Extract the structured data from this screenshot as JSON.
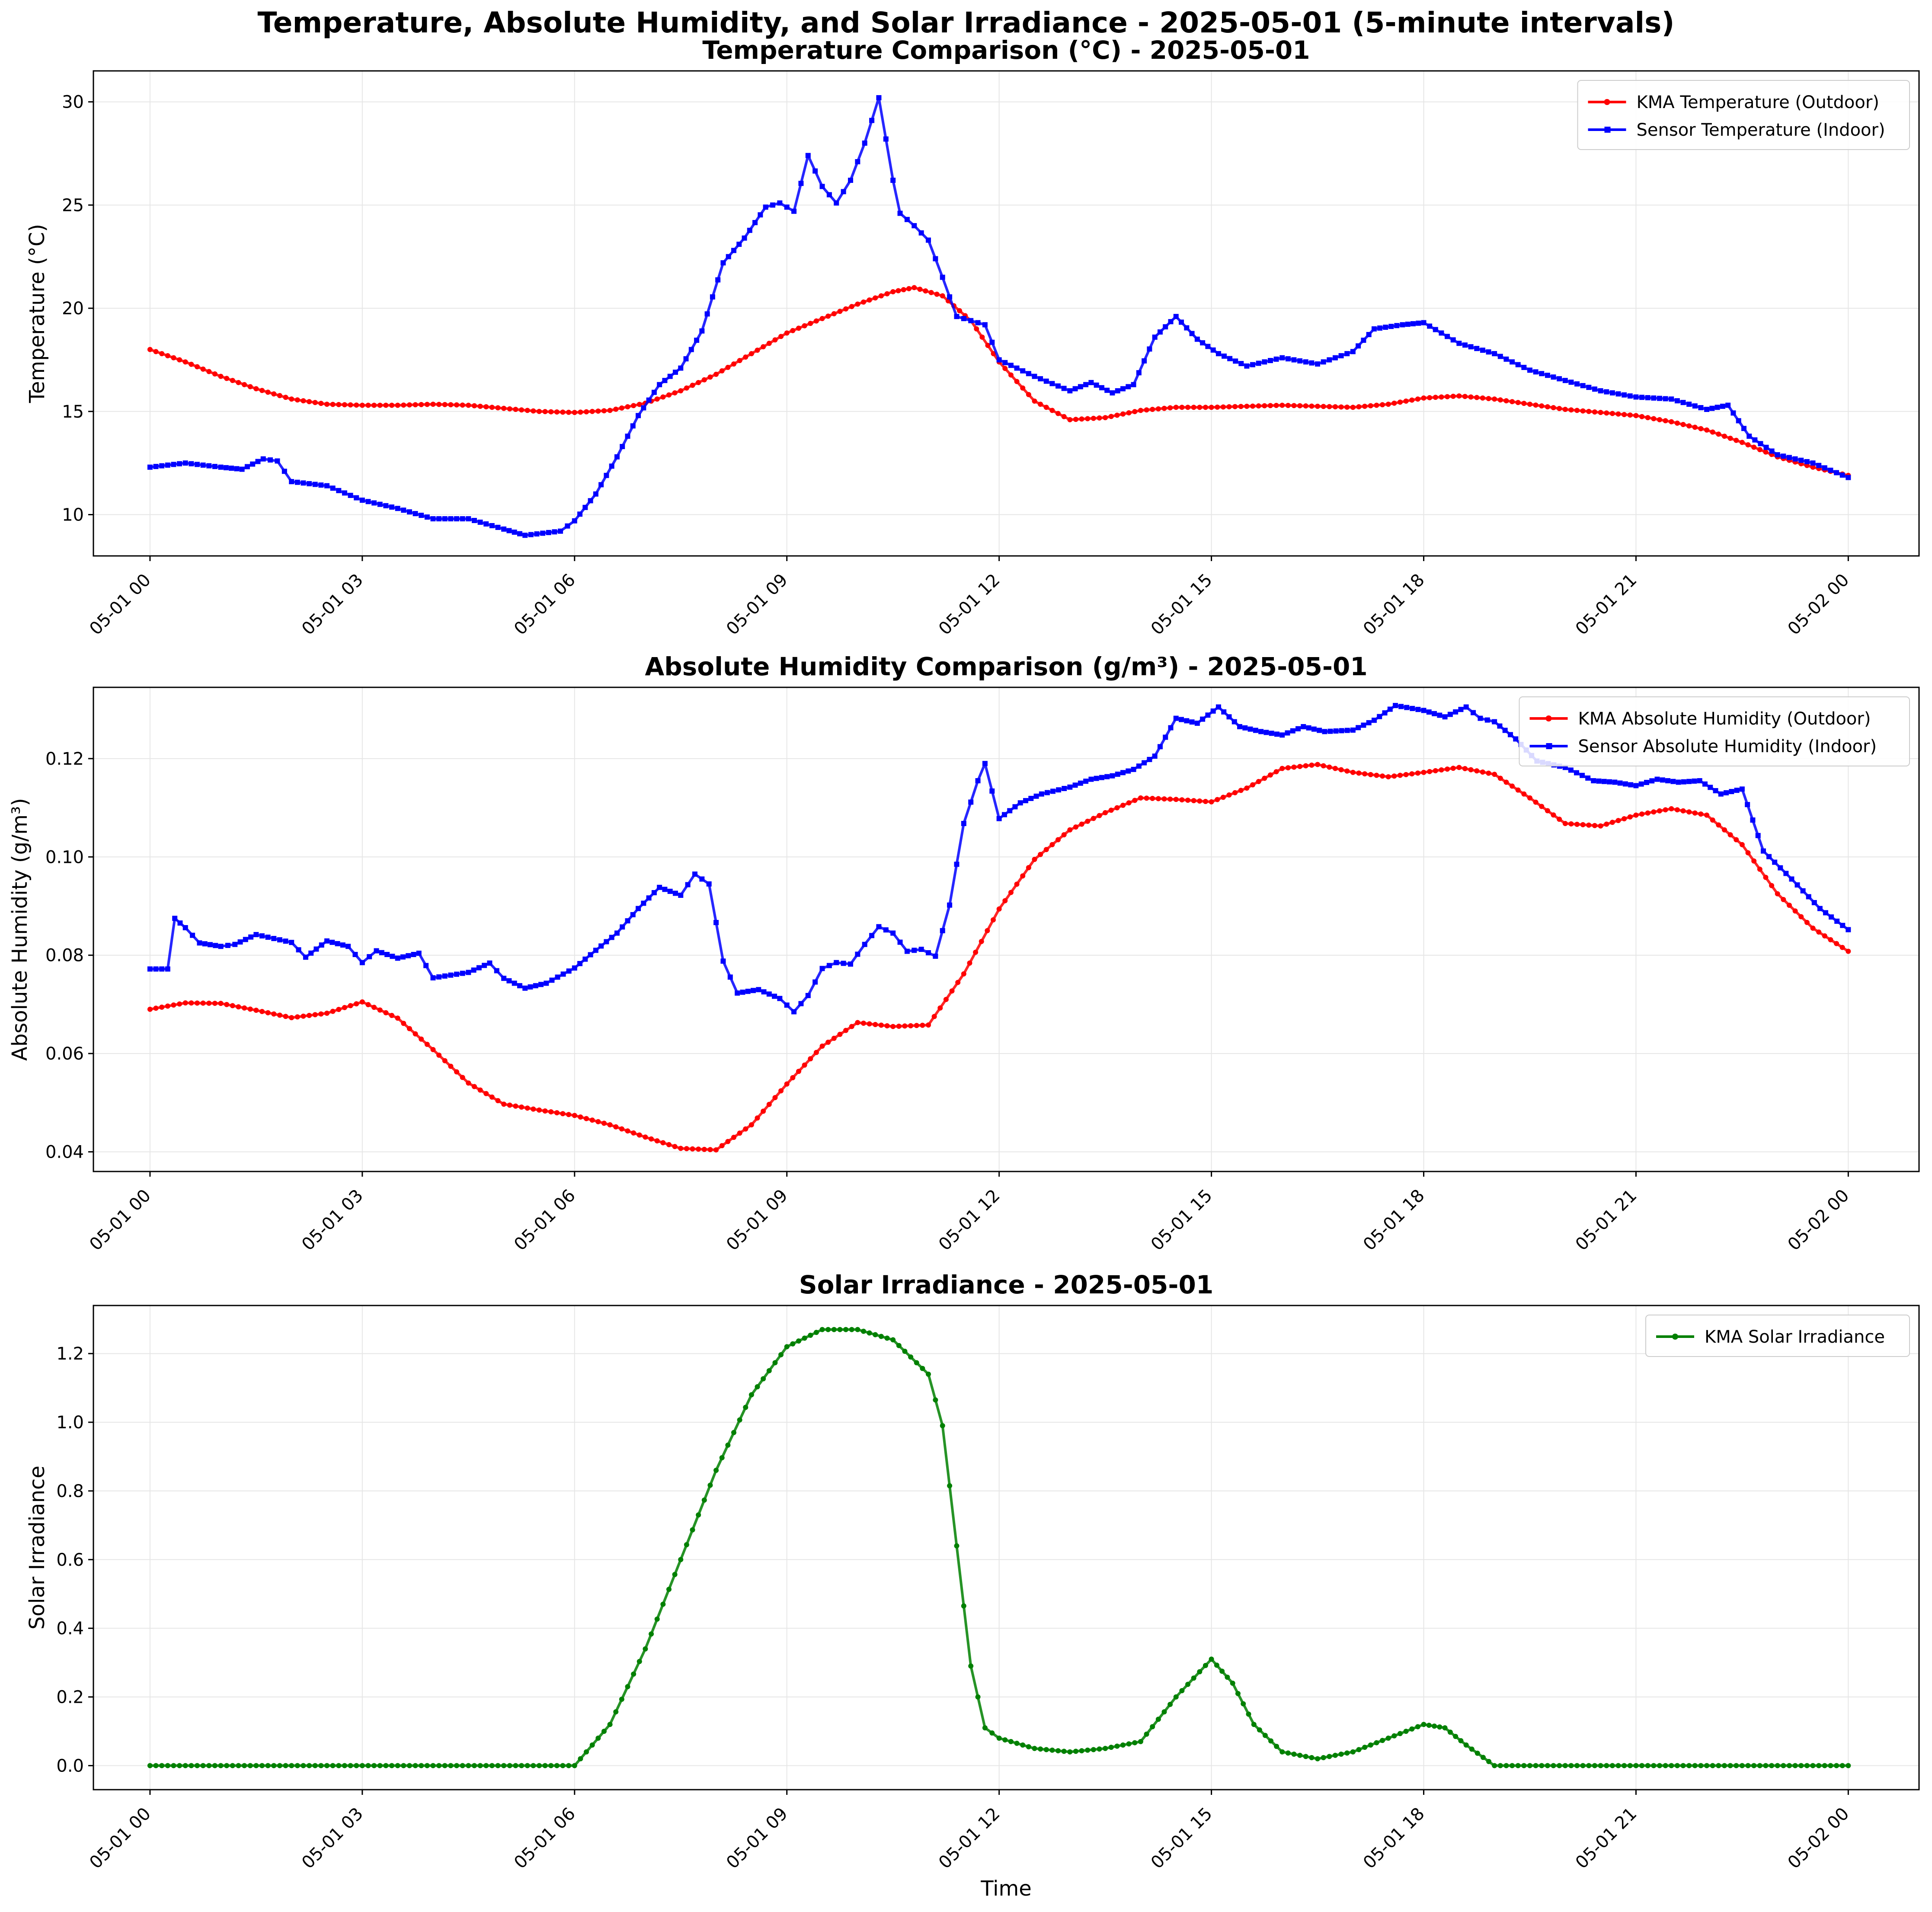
{
  "figure": {
    "suptitle": "Temperature, Absolute Humidity, and Solar Irradiance - 2025-05-01 (5-minute intervals)"
  },
  "colors": {
    "kma": "#ff0000",
    "sensor": "#0000ff",
    "solar": "#008000",
    "grid": "#e6e6e6"
  },
  "chart_data": [
    {
      "type": "line",
      "title": "Temperature Comparison (°C) - 2025-05-01",
      "xlabel": "",
      "ylabel": "Temperature (°C)",
      "xlim": [
        -0.8,
        25.0
      ],
      "ylim": [
        8.0,
        31.5
      ],
      "yticks": [
        10,
        15,
        20,
        25,
        30
      ],
      "xticks": [
        0,
        3,
        6,
        9,
        12,
        15,
        18,
        21,
        24
      ],
      "xtick_labels": [
        "05-01 00",
        "05-01 03",
        "05-01 06",
        "05-01 09",
        "05-01 12",
        "05-01 15",
        "05-01 18",
        "05-01 21",
        "05-02 00"
      ],
      "grid": true,
      "legend_position": "top-right",
      "series": [
        {
          "name": "KMA Temperature (Outdoor)",
          "color": "#ff0000",
          "marker": "circle",
          "x": [
            0,
            0.5,
            1,
            1.5,
            2,
            2.5,
            3,
            3.5,
            4,
            4.5,
            5,
            5.5,
            6,
            6.5,
            7,
            7.5,
            8,
            8.5,
            9,
            9.5,
            10,
            10.5,
            10.8,
            11.2,
            11.6,
            12,
            12.5,
            13,
            13.5,
            14,
            14.5,
            15,
            15.5,
            16,
            16.5,
            17,
            17.5,
            18,
            18.5,
            19,
            19.5,
            20,
            20.5,
            21,
            21.5,
            22,
            22.5,
            23,
            23.5,
            24
          ],
          "y": [
            18.0,
            17.4,
            16.7,
            16.1,
            15.6,
            15.35,
            15.3,
            15.3,
            15.35,
            15.3,
            15.15,
            15.0,
            14.95,
            15.05,
            15.4,
            16.0,
            16.8,
            17.8,
            18.8,
            19.5,
            20.2,
            20.8,
            21.0,
            20.6,
            19.4,
            17.4,
            15.5,
            14.6,
            14.7,
            15.05,
            15.2,
            15.2,
            15.25,
            15.3,
            15.25,
            15.2,
            15.35,
            15.65,
            15.75,
            15.6,
            15.35,
            15.1,
            14.95,
            14.8,
            14.5,
            14.1,
            13.5,
            12.8,
            12.3,
            11.9
          ]
        },
        {
          "name": "Sensor Temperature (Indoor)",
          "color": "#0000ff",
          "marker": "square",
          "x": [
            0,
            0.5,
            1,
            1.3,
            1.6,
            1.8,
            2,
            2.5,
            3,
            3.5,
            4,
            4.5,
            5,
            5.3,
            5.8,
            6,
            6.3,
            6.6,
            6.9,
            7.2,
            7.5,
            7.8,
            8.1,
            8.4,
            8.7,
            8.9,
            9.1,
            9.3,
            9.5,
            9.7,
            9.9,
            10.1,
            10.3,
            10.5,
            10.6,
            10.8,
            11.0,
            11.2,
            11.4,
            11.6,
            11.8,
            12,
            12.5,
            13,
            13.3,
            13.6,
            13.9,
            14.2,
            14.5,
            14.8,
            15.1,
            15.5,
            16,
            16.5,
            17,
            17.3,
            17.7,
            18,
            18.5,
            19,
            19.5,
            20,
            20.5,
            21,
            21.5,
            22,
            22.3,
            22.6,
            23,
            23.5,
            24
          ],
          "y": [
            12.3,
            12.5,
            12.3,
            12.2,
            12.7,
            12.6,
            11.6,
            11.4,
            10.7,
            10.3,
            9.8,
            9.8,
            9.3,
            9.0,
            9.2,
            9.7,
            11.0,
            12.8,
            14.8,
            16.3,
            17.1,
            18.9,
            22.2,
            23.4,
            24.9,
            25.1,
            24.7,
            27.4,
            25.9,
            25.1,
            26.2,
            28.0,
            30.2,
            26.2,
            24.6,
            24.0,
            23.3,
            21.5,
            19.6,
            19.4,
            19.2,
            17.5,
            16.7,
            16.0,
            16.4,
            15.9,
            16.3,
            18.6,
            19.6,
            18.5,
            17.8,
            17.2,
            17.6,
            17.3,
            17.9,
            19.0,
            19.2,
            19.3,
            18.3,
            17.8,
            17.0,
            16.5,
            16.0,
            15.7,
            15.6,
            15.1,
            15.3,
            13.8,
            12.9,
            12.5,
            11.8
          ]
        }
      ]
    },
    {
      "type": "line",
      "title": "Absolute Humidity Comparison (g/m³) - 2025-05-01",
      "xlabel": "",
      "ylabel": "Absolute Humidity (g/m³)",
      "xlim": [
        -0.8,
        25.0
      ],
      "ylim": [
        0.036,
        0.1345
      ],
      "yticks": [
        0.04,
        0.06,
        0.08,
        0.1,
        0.12
      ],
      "xticks": [
        0,
        3,
        6,
        9,
        12,
        15,
        18,
        21,
        24
      ],
      "xtick_labels": [
        "05-01 00",
        "05-01 03",
        "05-01 06",
        "05-01 09",
        "05-01 12",
        "05-01 15",
        "05-01 18",
        "05-01 21",
        "05-02 00"
      ],
      "grid": true,
      "legend_position": "top-right",
      "series": [
        {
          "name": "KMA Absolute Humidity (Outdoor)",
          "color": "#ff0000",
          "marker": "circle",
          "x": [
            0,
            0.5,
            1,
            1.5,
            2,
            2.5,
            3,
            3.5,
            4,
            4.5,
            5,
            5.5,
            6,
            6.5,
            7,
            7.5,
            8,
            8.5,
            9,
            9.5,
            10,
            10.5,
            11,
            11.5,
            12,
            12.5,
            13,
            13.5,
            14,
            14.5,
            15,
            15.5,
            16,
            16.5,
            17,
            17.5,
            18,
            18.5,
            19,
            19.5,
            20,
            20.5,
            21,
            21.5,
            22,
            22.5,
            23,
            23.5,
            24
          ],
          "y": [
            0.069,
            0.0703,
            0.0702,
            0.0688,
            0.0673,
            0.0682,
            0.0705,
            0.0672,
            0.0608,
            0.054,
            0.0497,
            0.0485,
            0.0474,
            0.0455,
            0.043,
            0.0407,
            0.0404,
            0.0455,
            0.0538,
            0.0615,
            0.0663,
            0.0655,
            0.0658,
            0.0762,
            0.0894,
            0.0995,
            0.1055,
            0.109,
            0.112,
            0.1117,
            0.1112,
            0.114,
            0.118,
            0.1188,
            0.1172,
            0.1163,
            0.1172,
            0.1182,
            0.1168,
            0.112,
            0.1068,
            0.1063,
            0.1085,
            0.1098,
            0.1085,
            0.1025,
            0.0925,
            0.0855,
            0.0808
          ]
        },
        {
          "name": "Sensor Absolute Humidity (Indoor)",
          "color": "#0000ff",
          "marker": "square",
          "x": [
            0,
            0.25,
            0.35,
            0.5,
            0.7,
            1,
            1.2,
            1.5,
            2,
            2.2,
            2.5,
            2.8,
            3,
            3.2,
            3.5,
            3.8,
            4,
            4.5,
            4.8,
            5,
            5.3,
            5.6,
            6,
            6.3,
            6.6,
            6.9,
            7.2,
            7.5,
            7.7,
            7.9,
            8.1,
            8.3,
            8.6,
            8.9,
            9.1,
            9.3,
            9.5,
            9.7,
            9.9,
            10.1,
            10.3,
            10.5,
            10.7,
            10.9,
            11.1,
            11.3,
            11.5,
            11.7,
            11.8,
            12,
            12.3,
            12.6,
            13,
            13.3,
            13.6,
            13.9,
            14.2,
            14.5,
            14.8,
            15.1,
            15.4,
            15.7,
            16,
            16.3,
            16.6,
            17,
            17.3,
            17.6,
            18,
            18.3,
            18.6,
            18.8,
            19,
            19.3,
            19.6,
            20,
            20.4,
            20.7,
            21,
            21.3,
            21.6,
            21.9,
            22.2,
            22.5,
            22.8,
            23.2,
            23.6,
            24
          ],
          "y": [
            0.0772,
            0.0772,
            0.0875,
            0.0856,
            0.0825,
            0.0818,
            0.0822,
            0.0842,
            0.0826,
            0.0796,
            0.0829,
            0.0818,
            0.0785,
            0.0809,
            0.0794,
            0.0804,
            0.0754,
            0.0765,
            0.0784,
            0.0753,
            0.0733,
            0.0743,
            0.0774,
            0.081,
            0.0845,
            0.0895,
            0.0938,
            0.0922,
            0.0965,
            0.0945,
            0.0788,
            0.0723,
            0.073,
            0.0712,
            0.0685,
            0.0718,
            0.0773,
            0.0785,
            0.0782,
            0.0822,
            0.0858,
            0.0845,
            0.0808,
            0.0812,
            0.0798,
            0.0902,
            0.1068,
            0.1155,
            0.119,
            0.1078,
            0.111,
            0.1128,
            0.1142,
            0.1158,
            0.1165,
            0.1178,
            0.1205,
            0.1282,
            0.1272,
            0.1305,
            0.1265,
            0.1255,
            0.1248,
            0.1265,
            0.1255,
            0.1258,
            0.1278,
            0.1308,
            0.1298,
            0.1285,
            0.1305,
            0.1282,
            0.1275,
            0.124,
            0.1195,
            0.1182,
            0.1155,
            0.1152,
            0.1145,
            0.1158,
            0.1152,
            0.1155,
            0.1128,
            0.1138,
            0.1012,
            0.0955,
            0.0895,
            0.0852
          ]
        }
      ]
    },
    {
      "type": "line",
      "title": "Solar Irradiance - 2025-05-01",
      "xlabel": "Time",
      "ylabel": "Solar Irradiance",
      "xlim": [
        -0.8,
        25.0
      ],
      "ylim": [
        -0.07,
        1.34
      ],
      "yticks": [
        0.0,
        0.2,
        0.4,
        0.6,
        0.8,
        1.0,
        1.2
      ],
      "xticks": [
        0,
        3,
        6,
        9,
        12,
        15,
        18,
        21,
        24
      ],
      "xtick_labels": [
        "05-01 00",
        "05-01 03",
        "05-01 06",
        "05-01 09",
        "05-01 12",
        "05-01 15",
        "05-01 18",
        "05-01 21",
        "05-02 00"
      ],
      "grid": true,
      "legend_position": "top-right",
      "series": [
        {
          "name": "KMA Solar Irradiance",
          "color": "#008000",
          "marker": "circle",
          "x": [
            0,
            1,
            2,
            3,
            4,
            5,
            6,
            6.5,
            7,
            7.5,
            8,
            8.5,
            9,
            9.5,
            10,
            10.5,
            11,
            11.2,
            11.4,
            11.6,
            11.8,
            12,
            12.5,
            13,
            13.5,
            14,
            14.5,
            15,
            15.3,
            15.6,
            16,
            16.5,
            17,
            17.5,
            18,
            18.3,
            18.6,
            19,
            20,
            21,
            22,
            23,
            24
          ],
          "y": [
            0,
            0,
            0,
            0,
            0,
            0,
            0,
            0.12,
            0.34,
            0.6,
            0.86,
            1.08,
            1.22,
            1.27,
            1.27,
            1.24,
            1.14,
            0.99,
            0.64,
            0.29,
            0.11,
            0.08,
            0.05,
            0.04,
            0.05,
            0.07,
            0.2,
            0.31,
            0.24,
            0.12,
            0.04,
            0.02,
            0.04,
            0.08,
            0.12,
            0.11,
            0.06,
            0,
            0,
            0,
            0,
            0,
            0
          ]
        }
      ]
    }
  ]
}
